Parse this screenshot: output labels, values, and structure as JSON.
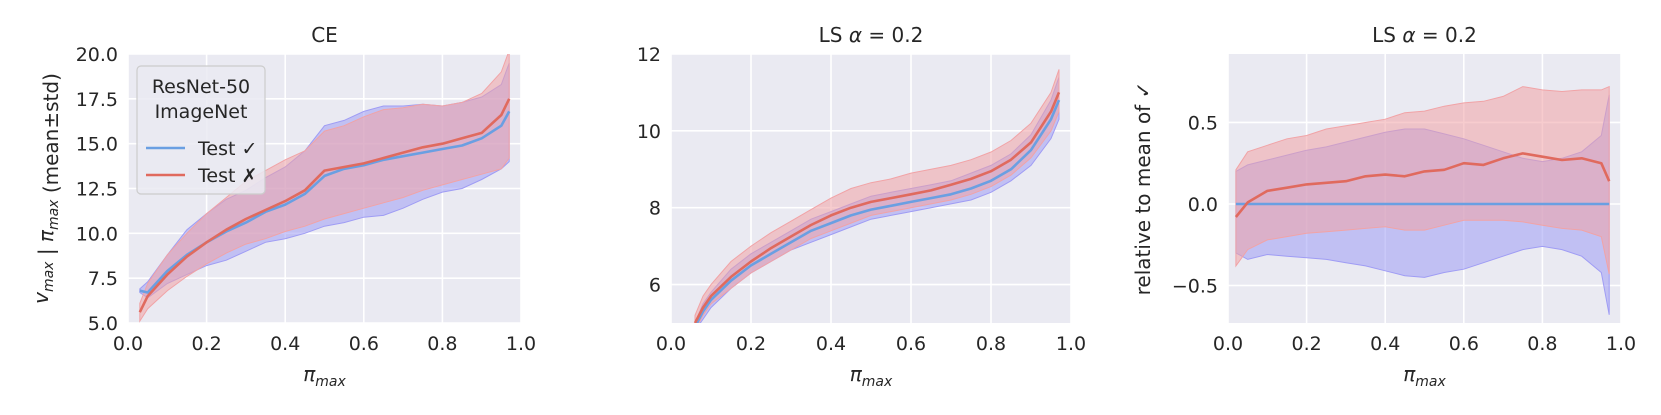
{
  "colors": {
    "background": "#eaeaf2",
    "grid": "#ffffff",
    "correct": "#6a9fe2",
    "wrong": "#e06a5e",
    "correct_band": "#9f9cf4",
    "wrong_band": "#f1a3a6"
  },
  "legend": {
    "title_line1": "ResNet-50",
    "title_line2": "ImageNet",
    "correct_label": "Test ✓",
    "wrong_label": "Test ✗"
  },
  "chart_data": [
    {
      "type": "line",
      "title": "CE",
      "xlabel": "π_max",
      "ylabel": "v_max | π_max   (mean±std)",
      "xlim": [
        0,
        1.0
      ],
      "ylim": [
        5.0,
        20.0
      ],
      "xticks": [
        "0.0",
        "0.2",
        "0.4",
        "0.6",
        "0.8",
        "1.0"
      ],
      "yticks": [
        "5.0",
        "7.5",
        "10.0",
        "12.5",
        "15.0",
        "17.5",
        "20.0"
      ],
      "grid": true,
      "legend_position": "top-left",
      "x": [
        0.03,
        0.05,
        0.1,
        0.15,
        0.2,
        0.25,
        0.3,
        0.35,
        0.4,
        0.45,
        0.5,
        0.55,
        0.6,
        0.65,
        0.7,
        0.75,
        0.8,
        0.85,
        0.9,
        0.95,
        0.97
      ],
      "series": [
        {
          "name": "Test ✓",
          "mean": [
            6.8,
            6.7,
            7.9,
            8.8,
            9.5,
            10.1,
            10.6,
            11.2,
            11.6,
            12.2,
            13.2,
            13.6,
            13.8,
            14.1,
            14.3,
            14.5,
            14.7,
            14.9,
            15.3,
            16.0,
            16.8
          ],
          "lower": [
            6.7,
            6.4,
            7.2,
            7.7,
            8.2,
            8.5,
            9.0,
            9.5,
            9.7,
            10.0,
            10.4,
            10.6,
            10.9,
            11.0,
            11.4,
            11.9,
            12.3,
            12.5,
            13.0,
            13.6,
            14.0
          ],
          "upper": [
            6.9,
            7.3,
            8.8,
            10.2,
            11.1,
            11.9,
            12.4,
            13.1,
            13.7,
            14.6,
            16.0,
            16.3,
            16.8,
            17.1,
            17.1,
            17.2,
            17.1,
            17.3,
            17.6,
            18.3,
            19.5
          ]
        },
        {
          "name": "Test ✗",
          "mean": [
            5.6,
            6.5,
            7.7,
            8.7,
            9.5,
            10.2,
            10.8,
            11.3,
            11.8,
            12.4,
            13.5,
            13.7,
            13.9,
            14.2,
            14.5,
            14.8,
            15.0,
            15.3,
            15.6,
            16.6,
            17.5
          ],
          "lower": [
            5.1,
            5.8,
            6.8,
            7.6,
            8.3,
            8.9,
            9.4,
            9.7,
            10.1,
            10.4,
            10.8,
            11.1,
            11.4,
            11.7,
            12.0,
            12.4,
            12.7,
            13.0,
            13.3,
            13.6,
            14.2
          ],
          "upper": [
            6.1,
            7.2,
            8.8,
            10.0,
            11.1,
            12.0,
            12.9,
            13.5,
            14.1,
            14.6,
            15.7,
            16.0,
            16.5,
            16.9,
            17.0,
            17.2,
            17.1,
            17.3,
            17.8,
            19.0,
            20.2
          ]
        }
      ]
    },
    {
      "type": "line",
      "title": "LS α = 0.2",
      "xlabel": "π_max",
      "ylabel": "",
      "xlim": [
        0,
        1.0
      ],
      "ylim": [
        5,
        12
      ],
      "xticks": [
        "0.0",
        "0.2",
        "0.4",
        "0.6",
        "0.8",
        "1.0"
      ],
      "yticks": [
        "6",
        "8",
        "10",
        "12"
      ],
      "grid": true,
      "x": [
        0.06,
        0.08,
        0.1,
        0.15,
        0.2,
        0.25,
        0.3,
        0.35,
        0.4,
        0.45,
        0.5,
        0.55,
        0.6,
        0.65,
        0.7,
        0.75,
        0.8,
        0.85,
        0.9,
        0.95,
        0.97
      ],
      "series": [
        {
          "name": "Test ✓",
          "mean": [
            4.9,
            5.3,
            5.6,
            6.1,
            6.5,
            6.8,
            7.1,
            7.4,
            7.6,
            7.8,
            7.95,
            8.05,
            8.15,
            8.25,
            8.35,
            8.5,
            8.7,
            9.0,
            9.5,
            10.3,
            10.8
          ],
          "lower": [
            4.8,
            5.1,
            5.4,
            5.9,
            6.3,
            6.6,
            6.9,
            7.1,
            7.3,
            7.5,
            7.7,
            7.8,
            7.9,
            8.0,
            8.1,
            8.2,
            8.4,
            8.7,
            9.1,
            9.8,
            10.3
          ],
          "upper": [
            5.0,
            5.5,
            5.8,
            6.4,
            6.8,
            7.1,
            7.4,
            7.7,
            7.9,
            8.1,
            8.3,
            8.4,
            8.5,
            8.6,
            8.7,
            8.9,
            9.1,
            9.4,
            9.9,
            10.8,
            11.4
          ]
        },
        {
          "name": "Test ✗",
          "mean": [
            5.0,
            5.4,
            5.7,
            6.2,
            6.6,
            6.95,
            7.25,
            7.55,
            7.8,
            8.0,
            8.15,
            8.25,
            8.35,
            8.45,
            8.6,
            8.75,
            8.95,
            9.25,
            9.7,
            10.5,
            11.0
          ],
          "lower": [
            4.8,
            5.2,
            5.5,
            5.9,
            6.3,
            6.6,
            6.9,
            7.2,
            7.4,
            7.6,
            7.8,
            7.9,
            8.0,
            8.1,
            8.2,
            8.35,
            8.55,
            8.85,
            9.3,
            10.0,
            10.5
          ],
          "upper": [
            5.2,
            5.7,
            6.0,
            6.6,
            7.0,
            7.35,
            7.65,
            7.95,
            8.25,
            8.5,
            8.65,
            8.75,
            8.9,
            9.0,
            9.1,
            9.25,
            9.45,
            9.75,
            10.2,
            11.0,
            11.6
          ]
        }
      ]
    },
    {
      "type": "line",
      "title": "LS α = 0.2",
      "xlabel": "π_max",
      "ylabel": "relative to mean of ✓",
      "xlim": [
        0,
        1.0
      ],
      "ylim": [
        -0.73,
        0.92
      ],
      "xticks": [
        "0.0",
        "0.2",
        "0.4",
        "0.6",
        "0.8",
        "1.0"
      ],
      "yticks": [
        "−0.5",
        "0.0",
        "0.5"
      ],
      "grid": true,
      "x": [
        0.02,
        0.05,
        0.1,
        0.15,
        0.2,
        0.25,
        0.3,
        0.35,
        0.4,
        0.45,
        0.5,
        0.55,
        0.6,
        0.65,
        0.7,
        0.75,
        0.8,
        0.85,
        0.9,
        0.95,
        0.97
      ],
      "series": [
        {
          "name": "Test ✓",
          "mean": [
            0,
            0,
            0,
            0,
            0,
            0,
            0,
            0,
            0,
            0,
            0,
            0,
            0,
            0,
            0,
            0,
            0,
            0,
            0,
            0,
            0
          ],
          "lower": [
            -0.3,
            -0.34,
            -0.31,
            -0.32,
            -0.33,
            -0.34,
            -0.36,
            -0.38,
            -0.41,
            -0.44,
            -0.45,
            -0.42,
            -0.4,
            -0.36,
            -0.32,
            -0.28,
            -0.26,
            -0.28,
            -0.32,
            -0.42,
            -0.68
          ],
          "upper": [
            0.2,
            0.24,
            0.27,
            0.3,
            0.33,
            0.35,
            0.38,
            0.41,
            0.44,
            0.46,
            0.46,
            0.43,
            0.4,
            0.36,
            0.32,
            0.28,
            0.26,
            0.28,
            0.32,
            0.42,
            0.67
          ]
        },
        {
          "name": "Test ✗",
          "mean": [
            -0.08,
            0.01,
            0.08,
            0.1,
            0.12,
            0.13,
            0.14,
            0.17,
            0.18,
            0.17,
            0.2,
            0.21,
            0.25,
            0.24,
            0.28,
            0.31,
            0.29,
            0.27,
            0.28,
            0.25,
            0.14
          ],
          "lower": [
            -0.38,
            -0.28,
            -0.22,
            -0.2,
            -0.18,
            -0.17,
            -0.16,
            -0.15,
            -0.14,
            -0.16,
            -0.16,
            -0.13,
            -0.1,
            -0.1,
            -0.1,
            -0.11,
            -0.13,
            -0.15,
            -0.16,
            -0.2,
            -0.43
          ],
          "upper": [
            0.21,
            0.32,
            0.36,
            0.4,
            0.42,
            0.46,
            0.48,
            0.5,
            0.52,
            0.56,
            0.57,
            0.6,
            0.62,
            0.63,
            0.66,
            0.72,
            0.7,
            0.69,
            0.7,
            0.7,
            0.72
          ]
        }
      ]
    }
  ]
}
